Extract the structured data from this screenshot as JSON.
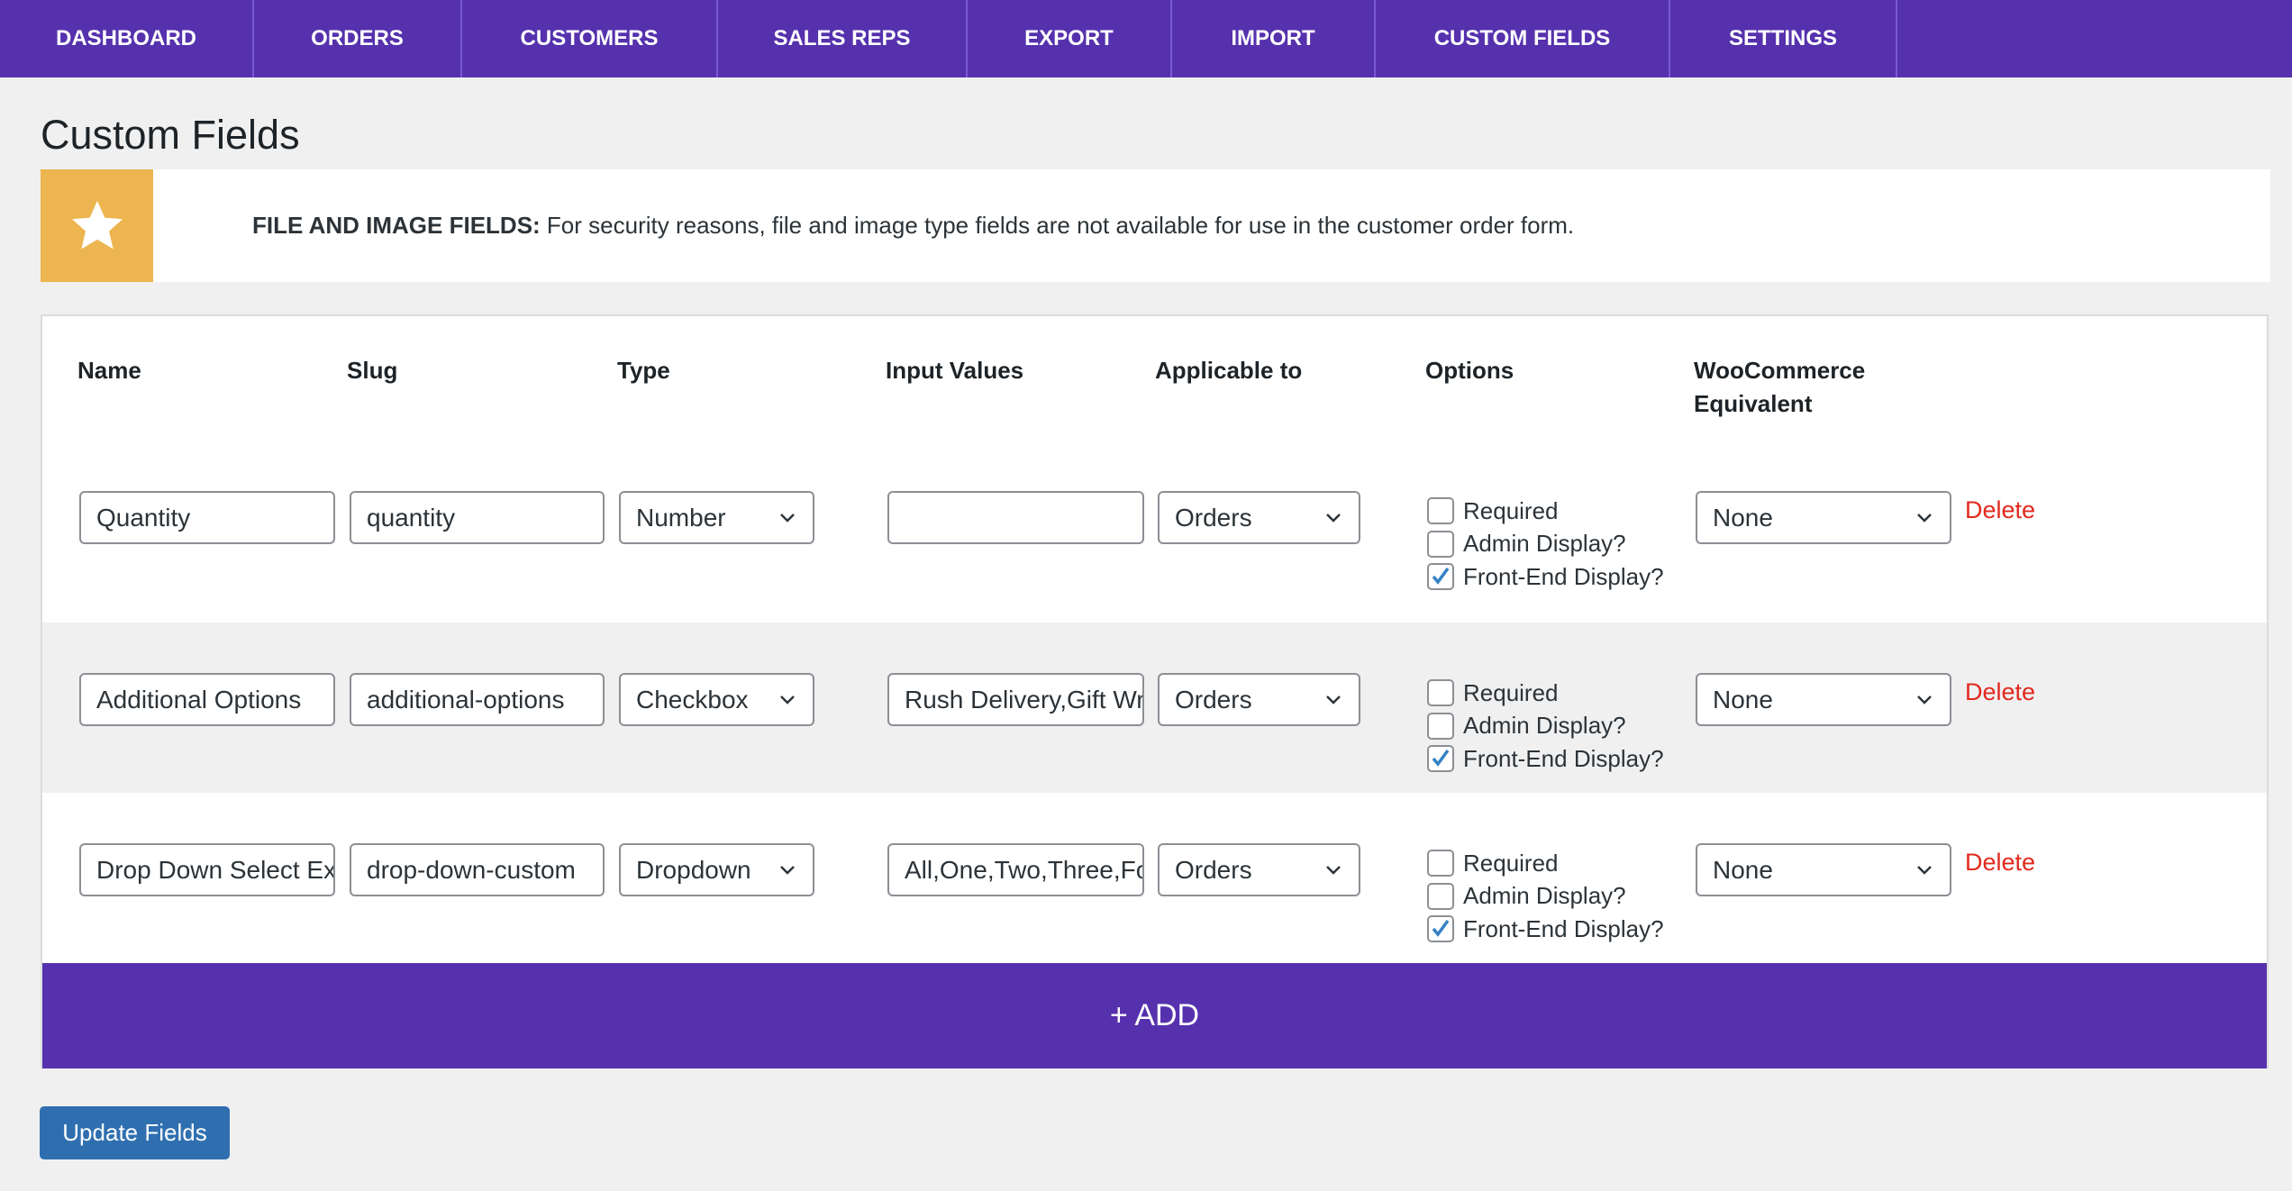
{
  "nav": {
    "items": [
      "DASHBOARD",
      "ORDERS",
      "CUSTOMERS",
      "SALES REPS",
      "EXPORT",
      "IMPORT",
      "CUSTOM FIELDS",
      "SETTINGS"
    ]
  },
  "page_title": "Custom Fields",
  "notice": {
    "icon": "star-icon",
    "bold": "FILE AND IMAGE FIELDS:",
    "text": " For security reasons, file and image type fields are not available for use in the customer order form.",
    "color": "#ecb54f"
  },
  "table": {
    "headers": [
      "Name",
      "Slug",
      "Type",
      "Input Values",
      "Applicable to",
      "Options",
      "WooCommerce Equivalent"
    ],
    "option_labels": [
      "Required",
      "Admin Display?",
      "Front-End Display?"
    ],
    "delete_label": "Delete",
    "rows": [
      {
        "name": "Quantity",
        "slug": "quantity",
        "type": "Number",
        "input_values": "",
        "applicable": "Orders",
        "required": false,
        "admin_display": false,
        "front_end_display": true,
        "woo": "None"
      },
      {
        "name": "Additional Options",
        "slug": "additional-options",
        "type": "Checkbox",
        "input_values": "Rush Delivery,Gift Wrap",
        "applicable": "Orders",
        "required": false,
        "admin_display": false,
        "front_end_display": true,
        "woo": "None"
      },
      {
        "name": "Drop Down Select Example",
        "slug": "drop-down-custom",
        "type": "Dropdown",
        "input_values": "All,One,Two,Three,Four",
        "applicable": "Orders",
        "required": false,
        "admin_display": false,
        "front_end_display": true,
        "woo": "None"
      }
    ]
  },
  "add_label": "+ ADD",
  "update_label": "Update Fields",
  "colors": {
    "nav": "#5631ad",
    "delete": "#e2281e",
    "button": "#2f6fb0"
  }
}
